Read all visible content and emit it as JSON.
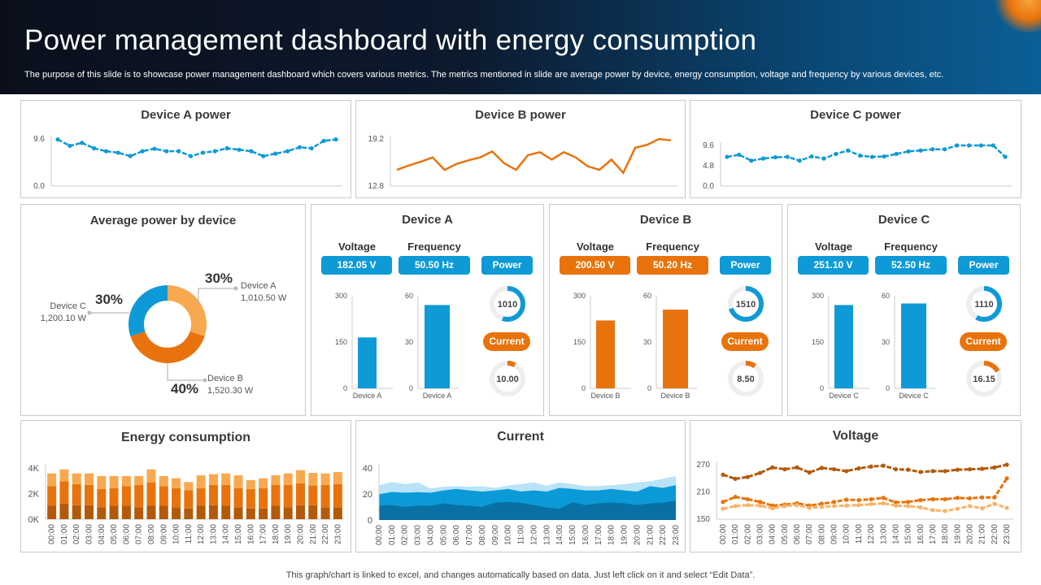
{
  "header": {
    "title": "Power management dashboard with energy consumption",
    "description": "The purpose of this slide is to showcase power management dashboard which covers various metrics. The metrics mentioned in slide are average power by device, energy consumption, voltage and frequency by various devices, etc."
  },
  "footer": "This graph/chart is linked to excel,  and changes automatically based on data. Just left click on it and select “Edit Data”.",
  "colors": {
    "blue": "#0e9ad7",
    "orange": "#e8730c",
    "light_orange": "#f8a94f",
    "dark_orange": "#b35a0a",
    "current_light": "#b9e3f6",
    "current_mid": "#0a9ad8",
    "current_dark": "#0870a3"
  },
  "chart_data": [
    {
      "id": "device_a_power",
      "type": "line",
      "title": "Device A power",
      "yticks": [
        "0.0",
        "9.6"
      ],
      "ylim": [
        0,
        9.6
      ],
      "color": "#0e9ad7",
      "values": [
        9.5,
        8.2,
        8.8,
        7.7,
        7.1,
        6.8,
        6.1,
        7.1,
        7.6,
        7.1,
        7.1,
        6.1,
        6.8,
        7.1,
        7.7,
        7.4,
        7.1,
        6.1,
        6.6,
        7.1,
        7.9,
        7.7,
        9.2,
        9.5
      ]
    },
    {
      "id": "device_b_power",
      "type": "line",
      "title": "Device B power",
      "yticks": [
        "12.8",
        "19.2"
      ],
      "ylim": [
        12.8,
        19.2
      ],
      "color": "#e8730c",
      "values": [
        15.0,
        15.6,
        16.1,
        16.7,
        15.0,
        15.8,
        16.3,
        16.7,
        17.5,
        15.9,
        15.0,
        17.0,
        17.4,
        16.4,
        17.4,
        16.7,
        15.5,
        15.0,
        16.4,
        14.6,
        18.0,
        18.4,
        19.2,
        19.0
      ]
    },
    {
      "id": "device_c_power",
      "type": "line",
      "title": "Device C power",
      "yticks": [
        "0.0",
        "4.8",
        "9.6"
      ],
      "ylim": [
        0,
        9.6
      ],
      "color": "#0e9ad7",
      "values": [
        6.9,
        7.4,
        6.0,
        6.5,
        6.8,
        6.9,
        6.0,
        7.0,
        6.5,
        7.6,
        8.4,
        7.2,
        6.9,
        7.0,
        7.6,
        8.2,
        8.4,
        8.7,
        8.7,
        10.1,
        10.2,
        10.5,
        9.9,
        6.9
      ]
    },
    {
      "id": "average_power",
      "type": "pie",
      "title": "Average power by device",
      "slices": [
        {
          "label": "Device A",
          "value_text": "1,010.50 W",
          "percent": 30,
          "pct_text": "30%",
          "color": "#f8a94f"
        },
        {
          "label": "Device B",
          "value_text": "1,520.30 W",
          "percent": 40,
          "pct_text": "40%",
          "color": "#e8730c"
        },
        {
          "label": "Device C",
          "value_text": "1,200.10 W",
          "percent": 30,
          "pct_text": "30%",
          "color": "#0e9ad7"
        }
      ]
    },
    {
      "id": "energy_consumption",
      "type": "bar",
      "stacked": true,
      "title": "Energy consumption",
      "yticks": [
        "0K",
        "2K",
        "4K"
      ],
      "ylim": [
        0,
        4000
      ],
      "categories": [
        "00:00",
        "01:00",
        "02:00",
        "03:00",
        "04:00",
        "05:00",
        "06:00",
        "07:00",
        "08:00",
        "09:00",
        "10:00",
        "11:00",
        "12:00",
        "13:00",
        "14:00",
        "15:00",
        "16:00",
        "17:00",
        "18:00",
        "19:00",
        "20:00",
        "21:00",
        "22:00",
        "23:00"
      ],
      "series": [
        {
          "color": "#b35a0a",
          "values": [
            1050,
            1220,
            1090,
            1090,
            930,
            1050,
            1050,
            930,
            1050,
            1050,
            930,
            840,
            1050,
            1090,
            1050,
            930,
            840,
            840,
            1050,
            930,
            1090,
            1090,
            930,
            930
          ]
        },
        {
          "color": "#e8730c",
          "values": [
            1520,
            1730,
            1650,
            1580,
            1430,
            1370,
            1520,
            1740,
            1830,
            1520,
            1490,
            1410,
            1370,
            1580,
            1620,
            1490,
            1520,
            1580,
            1620,
            1740,
            1710,
            1540,
            1740,
            1810
          ]
        },
        {
          "color": "#f8a94f",
          "values": [
            1010,
            940,
            840,
            910,
            1010,
            950,
            800,
            700,
            1010,
            800,
            780,
            650,
            1010,
            850,
            910,
            1010,
            690,
            780,
            760,
            910,
            1030,
            990,
            910,
            940
          ]
        }
      ]
    },
    {
      "id": "current",
      "type": "area",
      "stacked": true,
      "title": "Current",
      "yticks": [
        "0",
        "20",
        "40"
      ],
      "ylim": [
        0,
        40
      ],
      "categories": [
        "00:00",
        "01:00",
        "02:00",
        "03:00",
        "04:00",
        "05:00",
        "06:00",
        "07:00",
        "08:00",
        "09:00",
        "10:00",
        "11:00",
        "12:00",
        "13:00",
        "14:00",
        "15:00",
        "16:00",
        "17:00",
        "18:00",
        "19:00",
        "20:00",
        "21:00",
        "22:00",
        "23:00"
      ],
      "series": [
        {
          "color": "#0870a3",
          "values": [
            11.1,
            11.5,
            10.1,
            11.1,
            10.9,
            12.8,
            11.5,
            10.9,
            10.1,
            13.4,
            13.8,
            13.2,
            11.5,
            9.5,
            8.7,
            13.6,
            11.5,
            12.8,
            13.4,
            12.8,
            11.5,
            12.8,
            13.4,
            14.8
          ]
        },
        {
          "color": "#0a9ad8",
          "values": [
            8.7,
            10.1,
            10.9,
            10.3,
            10.1,
            9.9,
            12.4,
            11.8,
            11.8,
            9.3,
            10.1,
            8.7,
            11.2,
            12.4,
            16.0,
            10.3,
            11.2,
            9.9,
            10.5,
            9.9,
            10.4,
            13.2,
            11.3,
            12.0
          ]
        },
        {
          "color": "#b9e3f6",
          "values": [
            6.8,
            7.7,
            6.6,
            7.5,
            3.3,
            2.9,
            2.1,
            2.9,
            4.1,
            2.0,
            2.7,
            5.7,
            6.2,
            4.5,
            4.2,
            3.7,
            3.3,
            3.3,
            2.9,
            4.9,
            7.0,
            3.7,
            7.1,
            7.0
          ]
        }
      ]
    },
    {
      "id": "voltage",
      "type": "line",
      "title": "Voltage",
      "yticks": [
        "150",
        "210",
        "270"
      ],
      "ylim": [
        150,
        270
      ],
      "categories": [
        "00:00",
        "01:00",
        "02:00",
        "03:00",
        "04:00",
        "05:00",
        "06:00",
        "07:00",
        "08:00",
        "09:00",
        "10:00",
        "11:00",
        "12:00",
        "13:00",
        "14:00",
        "15:00",
        "16:00",
        "17:00",
        "18:00",
        "19:00",
        "20:00",
        "21:00",
        "22:00",
        "23:00"
      ],
      "series": [
        {
          "color": "#b35a0a",
          "values": [
            248,
            239,
            243,
            252,
            264,
            260,
            264,
            253,
            263,
            260,
            256,
            262,
            266,
            268,
            260,
            259,
            254,
            256,
            256,
            259,
            260,
            261,
            264,
            272
          ]
        },
        {
          "color": "#e8730c",
          "values": [
            188,
            199,
            194,
            188,
            180,
            182,
            185,
            180,
            184,
            188,
            193,
            192,
            194,
            197,
            187,
            188,
            192,
            194,
            194,
            197,
            196,
            198,
            198,
            240
          ]
        },
        {
          "color": "#f8b36a",
          "values": [
            173,
            179,
            181,
            180,
            174,
            179,
            181,
            175,
            177,
            179,
            180,
            181,
            183,
            185,
            180,
            179,
            176,
            170,
            168,
            173,
            179,
            174,
            184,
            175
          ]
        }
      ]
    }
  ],
  "devices": [
    {
      "name": "Device A",
      "voltage_label": "Voltage",
      "frequency_label": "Frequency",
      "voltage": "182.05  V",
      "frequency": "50.50  Hz",
      "power_label": "Power",
      "current_label": "Current",
      "power_value": "1010",
      "power_fill": 0.55,
      "current_value": "10.00",
      "current_fill": 0.08,
      "bar_color": "#0e9ad7",
      "pill_color": "#0e9ad7",
      "voltage_bar": {
        "value": 165,
        "ylim": [
          0,
          300
        ],
        "ticks": [
          "0",
          "150",
          "300"
        ],
        "category": "Device A"
      },
      "frequency_bar": {
        "value": 54,
        "ylim": [
          0,
          60
        ],
        "ticks": [
          "0",
          "30",
          "60"
        ],
        "category": "Device A"
      }
    },
    {
      "name": "Device B",
      "voltage_label": "Voltage",
      "frequency_label": "Frequency",
      "voltage": "200.50 V",
      "frequency": "50.20 Hz",
      "power_label": "Power",
      "current_label": "Current",
      "power_value": "1510",
      "power_fill": 0.7,
      "current_value": "8.50",
      "current_fill": 0.1,
      "bar_color": "#e8730c",
      "pill_color": "#e8730c",
      "voltage_bar": {
        "value": 220,
        "ylim": [
          0,
          300
        ],
        "ticks": [
          "0",
          "150",
          "300"
        ],
        "category": "Device B"
      },
      "frequency_bar": {
        "value": 51,
        "ylim": [
          0,
          60
        ],
        "ticks": [
          "0",
          "30",
          "60"
        ],
        "category": "Device B"
      }
    },
    {
      "name": "Device C",
      "voltage_label": "Voltage",
      "frequency_label": "Frequency",
      "voltage": "251.10 V",
      "frequency": "52.50 Hz",
      "power_label": "Power",
      "current_label": "Current",
      "power_value": "1110",
      "power_fill": 0.58,
      "current_value": "16.15",
      "current_fill": 0.17,
      "bar_color": "#0e9ad7",
      "pill_color": "#0e9ad7",
      "voltage_bar": {
        "value": 270,
        "ylim": [
          0,
          300
        ],
        "ticks": [
          "0",
          "150",
          "300"
        ],
        "category": "Device C"
      },
      "frequency_bar": {
        "value": 55,
        "ylim": [
          0,
          60
        ],
        "ticks": [
          "0",
          "30",
          "60"
        ],
        "category": "Device C"
      }
    }
  ]
}
